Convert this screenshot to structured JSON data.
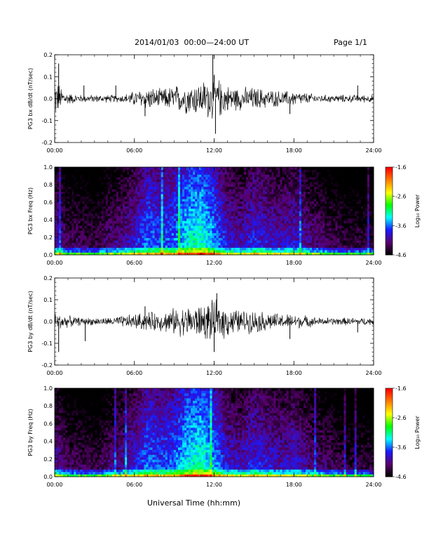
{
  "header": {
    "title": "2014/01/03  00:00—24:00 UT",
    "page": "Page 1/1"
  },
  "xaxis": {
    "label": "Universal Time (hh:mm)",
    "ticks": [
      "00:00",
      "06:00",
      "12:00",
      "18:00",
      "24:00"
    ],
    "range_hours": [
      0,
      24
    ]
  },
  "colorbar": {
    "label": "Log₁₀ Power",
    "ticks": [
      "-1.6",
      "-2.6",
      "-3.6",
      "-4.6"
    ],
    "range": [
      -4.6,
      -1.6
    ],
    "colors": [
      "#000000",
      "#5a006e",
      "#1a1aff",
      "#00ffff",
      "#00ff00",
      "#ffff00",
      "#ff8000",
      "#ff0000"
    ]
  },
  "chart_data": [
    {
      "type": "line",
      "ylabel": "PG3 bx dB/dt (nT/sec)",
      "ylim": [
        -0.2,
        0.2
      ],
      "yticks": [
        "0.2",
        "0.1",
        "0.0",
        "-0.1",
        "-0.2"
      ],
      "activity_hours": [
        0,
        1,
        2,
        3,
        4,
        5,
        6,
        7,
        8,
        9,
        10,
        11,
        12,
        13,
        14,
        15,
        16,
        17,
        18,
        19,
        20,
        21,
        22,
        23,
        24
      ],
      "envelope": [
        0.1,
        0.03,
        0.02,
        0.02,
        0.02,
        0.02,
        0.04,
        0.06,
        0.05,
        0.07,
        0.08,
        0.09,
        0.12,
        0.07,
        0.06,
        0.06,
        0.05,
        0.04,
        0.04,
        0.03,
        0.02,
        0.02,
        0.02,
        0.02,
        0.02
      ],
      "spikes": [
        {
          "h": 0.3,
          "v": 0.16
        },
        {
          "h": 2.2,
          "v": 0.06
        },
        {
          "h": 4.6,
          "v": 0.06
        },
        {
          "h": 6.8,
          "v": -0.08
        },
        {
          "h": 11.9,
          "v": 0.2
        },
        {
          "h": 12.1,
          "v": -0.16
        },
        {
          "h": 17.7,
          "v": -0.07
        },
        {
          "h": 22.8,
          "v": 0.06
        }
      ]
    },
    {
      "type": "heatmap",
      "ylabel": "PG3 bx Freq (Hz)",
      "ylim": [
        0.0,
        1.0
      ],
      "yticks": [
        "1.0",
        "0.8",
        "0.6",
        "0.4",
        "0.2",
        "0.0"
      ],
      "note_scale": "Log10 Power",
      "activity_hours": [
        0,
        1,
        2,
        3,
        4,
        5,
        6,
        7,
        8,
        9,
        10,
        11,
        12,
        13,
        14,
        15,
        16,
        17,
        18,
        19,
        20,
        21,
        22,
        23,
        24
      ],
      "activity": [
        -3.9,
        -4.2,
        -4.2,
        -4.3,
        -4.1,
        -4.0,
        -3.8,
        -3.5,
        -3.6,
        -3.5,
        -3.2,
        -3.1,
        -3.4,
        -3.8,
        -3.9,
        -3.7,
        -3.8,
        -3.9,
        -3.8,
        -4.0,
        -4.1,
        -4.2,
        -4.3,
        -4.3,
        -4.3
      ]
    },
    {
      "type": "line",
      "ylabel": "PG3 by dB/dt (nT/sec)",
      "ylim": [
        -0.2,
        0.2
      ],
      "yticks": [
        "0.2",
        "0.1",
        "0.0",
        "-0.1",
        "-0.2"
      ],
      "activity_hours": [
        0,
        1,
        2,
        3,
        4,
        5,
        6,
        7,
        8,
        9,
        10,
        11,
        12,
        13,
        14,
        15,
        16,
        17,
        18,
        19,
        20,
        21,
        22,
        23,
        24
      ],
      "envelope": [
        0.05,
        0.03,
        0.02,
        0.02,
        0.02,
        0.03,
        0.04,
        0.05,
        0.05,
        0.07,
        0.08,
        0.09,
        0.11,
        0.08,
        0.06,
        0.06,
        0.05,
        0.04,
        0.04,
        0.03,
        0.02,
        0.02,
        0.02,
        0.02,
        0.02
      ],
      "spikes": [
        {
          "h": 0.3,
          "v": -0.14
        },
        {
          "h": 2.3,
          "v": -0.09
        },
        {
          "h": 6.8,
          "v": 0.07
        },
        {
          "h": 12.2,
          "v": 0.13
        },
        {
          "h": 12.0,
          "v": -0.14
        },
        {
          "h": 17.7,
          "v": -0.08
        },
        {
          "h": 22.8,
          "v": -0.05
        }
      ]
    },
    {
      "type": "heatmap",
      "ylabel": "PG3 by Freq (Hz)",
      "ylim": [
        0.0,
        1.0
      ],
      "yticks": [
        "1.0",
        "0.8",
        "0.6",
        "0.4",
        "0.2",
        "0.0"
      ],
      "note_scale": "Log10 Power",
      "activity_hours": [
        0,
        1,
        2,
        3,
        4,
        5,
        6,
        7,
        8,
        9,
        10,
        11,
        12,
        13,
        14,
        15,
        16,
        17,
        18,
        19,
        20,
        21,
        22,
        23,
        24
      ],
      "activity": [
        -3.9,
        -4.2,
        -4.2,
        -4.3,
        -4.1,
        -4.0,
        -3.8,
        -3.5,
        -3.6,
        -3.5,
        -3.2,
        -3.1,
        -3.4,
        -3.8,
        -3.9,
        -3.7,
        -3.8,
        -3.9,
        -3.8,
        -4.0,
        -4.1,
        -4.2,
        -4.3,
        -4.3,
        -4.3
      ]
    }
  ]
}
